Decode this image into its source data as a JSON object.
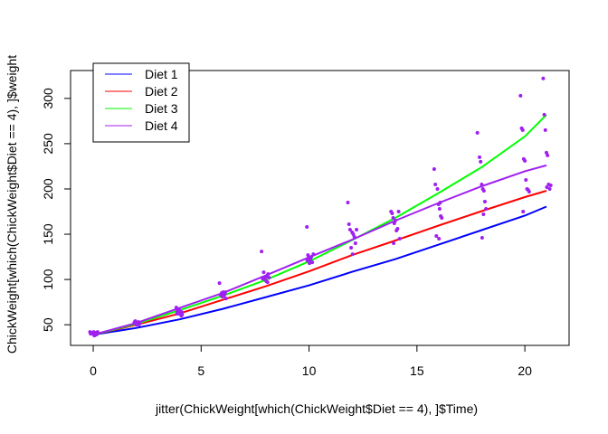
{
  "chart_data": {
    "type": "scatter",
    "title": "",
    "xlabel": "jitter(ChickWeight[which(ChickWeight$Diet == 4), ]$Time)",
    "ylabel": "ChickWeight[which(ChickWeight$Diet == 4), ]$weight",
    "xlim": [
      -1.05,
      22.05
    ],
    "ylim": [
      27.2,
      330.8
    ],
    "xticks": [
      0,
      5,
      10,
      15,
      20
    ],
    "yticks": [
      50,
      100,
      150,
      200,
      250,
      300
    ],
    "grid": false,
    "legend_position": "top-left",
    "series": [
      {
        "name": "Diet 1",
        "color": "#0000FF",
        "x": [
          0,
          2,
          4,
          6,
          8,
          10,
          12,
          14,
          16,
          18,
          20,
          21
        ],
        "y": [
          39,
          46.5,
          56,
          67.5,
          80.5,
          93.5,
          108.5,
          122.5,
          138.5,
          154.5,
          170.5,
          180.5
        ]
      },
      {
        "name": "Diet 2",
        "color": "#FF0000",
        "x": [
          0,
          2,
          4,
          6,
          8,
          10,
          12,
          14,
          16,
          18,
          20,
          21
        ],
        "y": [
          39,
          50,
          62.5,
          77.5,
          92.5,
          109,
          127,
          143,
          159.5,
          175.5,
          191,
          198
        ]
      },
      {
        "name": "Diet 3",
        "color": "#00FF00",
        "x": [
          0,
          2,
          4,
          6,
          8,
          10,
          12,
          14,
          16,
          18,
          20,
          21
        ],
        "y": [
          39,
          51,
          66,
          82,
          99.5,
          120,
          143.5,
          168,
          195.5,
          224,
          258,
          282
        ]
      },
      {
        "name": "Diet 4",
        "color": "#A020F0",
        "x": [
          0,
          2,
          4,
          6,
          8,
          10,
          12,
          14,
          16,
          18,
          20,
          21
        ],
        "y": [
          39,
          52,
          68.5,
          85,
          104.5,
          124.5,
          144,
          165,
          184.5,
          203,
          219.5,
          226
        ]
      }
    ],
    "points": {
      "color": "#A020F0",
      "x": [
        -0.15,
        -0.1,
        -0.05,
        0.02,
        0.08,
        0.15,
        -0.12,
        0.2,
        0.05,
        0.1,
        1.9,
        2.05,
        2.1,
        1.95,
        2.0,
        2.15,
        2.08,
        1.92,
        2.12,
        2.02,
        3.85,
        3.9,
        4.0,
        4.05,
        4.1,
        4.12,
        3.95,
        4.08,
        4.0,
        3.88,
        5.85,
        5.95,
        6.02,
        6.1,
        6.15,
        5.9,
        6.05,
        6.12,
        5.98,
        6.08,
        7.8,
        7.9,
        8.0,
        8.05,
        8.1,
        8.15,
        7.85,
        8.02,
        7.95,
        8.08,
        9.9,
        9.95,
        10.0,
        10.05,
        10.1,
        10.15,
        10.2,
        9.92,
        10.08,
        10.02,
        11.8,
        11.85,
        11.9,
        12.0,
        12.05,
        12.1,
        12.15,
        11.95,
        12.02,
        12.2,
        13.8,
        13.85,
        13.9,
        13.95,
        14.0,
        14.05,
        14.1,
        14.15,
        14.2,
        13.92,
        15.8,
        15.85,
        15.95,
        16.0,
        16.05,
        16.1,
        16.15,
        15.9,
        16.02,
        16.08,
        17.8,
        17.9,
        17.95,
        18.0,
        18.05,
        18.1,
        18.15,
        18.2,
        18.08,
        18.02,
        19.8,
        19.85,
        19.9,
        19.95,
        20.0,
        20.05,
        20.1,
        20.15,
        20.2,
        19.92,
        20.85,
        20.9,
        20.95,
        21.0,
        21.05,
        21.1,
        21.15,
        21.2,
        21.02
      ],
      "y": [
        42,
        41,
        40,
        42,
        41,
        39,
        40,
        42,
        38,
        41,
        52,
        51,
        53,
        54,
        50,
        52,
        51,
        53,
        50,
        52,
        69,
        65,
        62,
        63,
        64,
        61,
        67,
        60,
        66,
        62,
        96,
        85,
        86,
        84,
        79,
        83,
        82,
        86,
        81,
        85,
        131,
        108,
        103,
        104,
        106,
        102,
        101,
        98,
        100,
        97,
        158,
        127,
        124,
        122,
        125,
        119,
        128,
        121,
        124,
        118,
        185,
        161,
        155,
        152,
        150,
        147,
        140,
        135,
        128,
        155,
        175,
        173,
        168,
        162,
        165,
        154,
        156,
        175,
        145,
        140,
        222,
        205,
        200,
        183,
        178,
        170,
        168,
        148,
        145,
        185,
        262,
        235,
        230,
        205,
        200,
        198,
        186,
        178,
        172,
        146,
        303,
        267,
        265,
        233,
        231,
        210,
        200,
        199,
        197,
        175,
        322,
        282,
        265,
        240,
        237,
        205,
        200,
        204,
        202
      ]
    }
  }
}
